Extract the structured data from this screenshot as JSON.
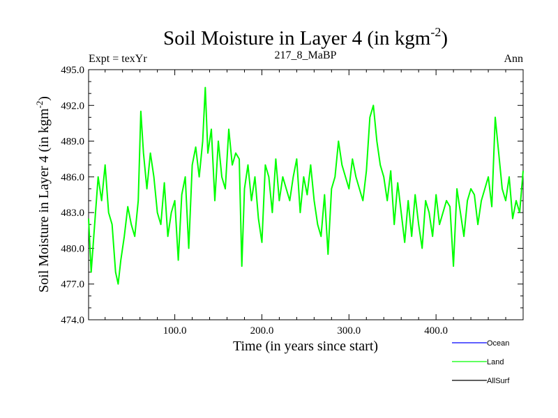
{
  "chart_data": {
    "type": "line",
    "title_main": "Soil Moisture in Layer 4 (in kgm",
    "title_sup": "-2",
    "title_close": ")",
    "subtitle_left": "Expt = texYr",
    "subtitle_center": "217_8_MaBP",
    "subtitle_right": "Ann",
    "xlabel": "Time (in years since start)",
    "ylabel_main": "Soil Moisture in Layer 4 (in kgm",
    "ylabel_sup": "-2",
    "ylabel_close": ")",
    "xlim": [
      1,
      500
    ],
    "ylim": [
      474,
      495
    ],
    "x_ticks": [
      100,
      200,
      300,
      400
    ],
    "x_tick_labels": [
      "100.0",
      "200.0",
      "300.0",
      "400.0"
    ],
    "y_ticks": [
      474,
      477,
      480,
      483,
      486,
      489,
      492,
      495
    ],
    "y_tick_labels": [
      "474.0",
      "477.0",
      "480.0",
      "483.0",
      "486.0",
      "489.0",
      "492.0",
      "495.0"
    ],
    "grid": false,
    "legend_position": "bottom-right",
    "series": [
      {
        "name": "Ocean",
        "color": "#0000ff",
        "x": [],
        "values": []
      },
      {
        "name": "Land",
        "color": "#00ff00",
        "x": [
          1,
          4,
          8,
          12,
          16,
          20,
          24,
          28,
          32,
          35,
          38,
          42,
          46,
          50,
          54,
          58,
          61,
          64,
          68,
          72,
          76,
          80,
          84,
          88,
          92,
          96,
          100,
          104,
          108,
          112,
          116,
          120,
          124,
          128,
          132,
          135,
          138,
          142,
          146,
          150,
          154,
          158,
          162,
          166,
          170,
          174,
          177,
          180,
          184,
          188,
          192,
          196,
          200,
          204,
          208,
          212,
          216,
          220,
          224,
          228,
          232,
          236,
          240,
          244,
          248,
          252,
          256,
          260,
          264,
          268,
          272,
          276,
          280,
          284,
          288,
          292,
          296,
          300,
          304,
          308,
          312,
          316,
          320,
          324,
          328,
          332,
          336,
          340,
          344,
          348,
          352,
          356,
          360,
          364,
          368,
          372,
          376,
          380,
          384,
          388,
          392,
          396,
          400,
          404,
          408,
          412,
          416,
          420,
          424,
          428,
          432,
          436,
          440,
          444,
          448,
          452,
          456,
          460,
          464,
          468,
          472,
          476,
          480,
          484,
          488,
          492,
          496,
          500
        ],
        "values": [
          482.5,
          478.0,
          482.0,
          486.0,
          484.0,
          487.0,
          483.0,
          482.0,
          478.0,
          477.0,
          479.0,
          481.0,
          483.5,
          482.0,
          481.0,
          484.0,
          491.5,
          488.0,
          485.0,
          488.0,
          486.0,
          483.0,
          482.0,
          485.5,
          481.0,
          483.0,
          484.0,
          479.0,
          484.5,
          486.0,
          480.0,
          487.0,
          488.5,
          486.0,
          489.0,
          493.5,
          488.0,
          490.0,
          484.0,
          489.0,
          486.0,
          485.0,
          490.0,
          487.0,
          488.0,
          487.5,
          478.5,
          485.0,
          487.0,
          484.0,
          486.0,
          482.5,
          480.5,
          487.0,
          486.0,
          483.0,
          487.5,
          484.0,
          486.0,
          485.0,
          484.0,
          486.0,
          487.5,
          483.0,
          486.0,
          484.5,
          487.0,
          484.0,
          482.0,
          481.0,
          484.5,
          479.5,
          485.0,
          486.0,
          489.0,
          487.0,
          486.0,
          485.0,
          487.5,
          486.0,
          485.0,
          484.0,
          486.5,
          491.0,
          492.0,
          489.0,
          487.0,
          486.0,
          484.0,
          486.5,
          482.0,
          485.5,
          483.0,
          480.5,
          484.0,
          481.0,
          484.5,
          482.0,
          480.0,
          484.0,
          483.0,
          481.0,
          484.5,
          482.0,
          483.0,
          484.0,
          483.5,
          478.5,
          485.0,
          483.0,
          481.0,
          484.0,
          485.0,
          484.5,
          482.0,
          484.0,
          485.0,
          486.0,
          483.5,
          491.0,
          488.0,
          485.0,
          484.0,
          486.0,
          482.5,
          484.0,
          483.0,
          486.5
        ]
      },
      {
        "name": "AllSurf",
        "color": "#000000",
        "x": [],
        "values": []
      }
    ]
  }
}
